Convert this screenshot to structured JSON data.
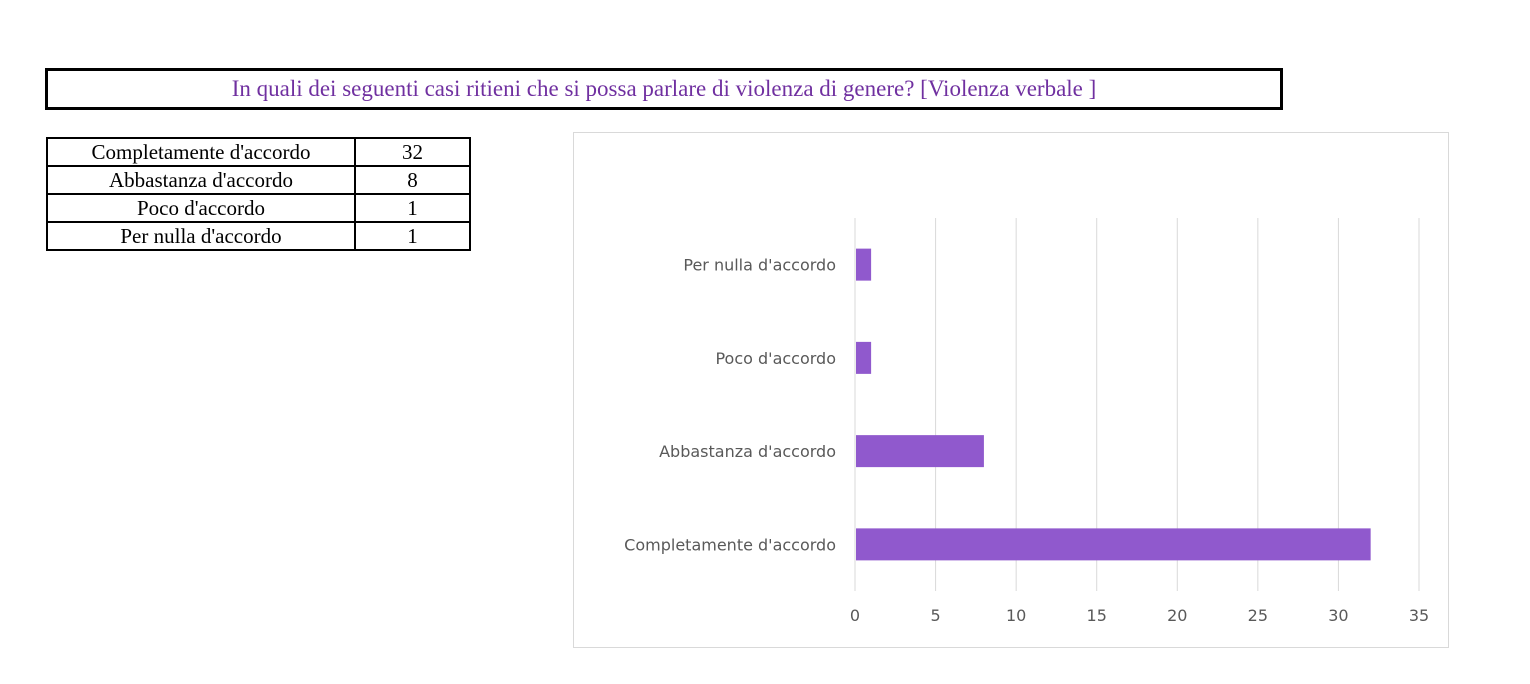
{
  "title": "In quali dei seguenti casi ritieni che si possa parlare di violenza di genere? [Violenza verbale ]",
  "table": {
    "rows": [
      {
        "label": "Completamente d'accordo",
        "value": "32"
      },
      {
        "label": "Abbastanza d'accordo",
        "value": "8"
      },
      {
        "label": "Poco d'accordo",
        "value": "1"
      },
      {
        "label": "Per nulla d'accordo",
        "value": "1"
      }
    ]
  },
  "chart_data": {
    "type": "bar",
    "orientation": "horizontal",
    "categories": [
      "Completamente d'accordo",
      "Abbastanza d'accordo",
      "Poco d'accordo",
      "Per nulla d'accordo"
    ],
    "values": [
      32,
      8,
      1,
      1
    ],
    "title": "",
    "xlabel": "",
    "ylabel": "",
    "xlim": [
      0,
      35
    ],
    "xticks": [
      0,
      5,
      10,
      15,
      20,
      25,
      30,
      35
    ],
    "grid": true,
    "legend": "none",
    "bar_color": "#9059cd",
    "grid_color": "#d9d9d9"
  }
}
